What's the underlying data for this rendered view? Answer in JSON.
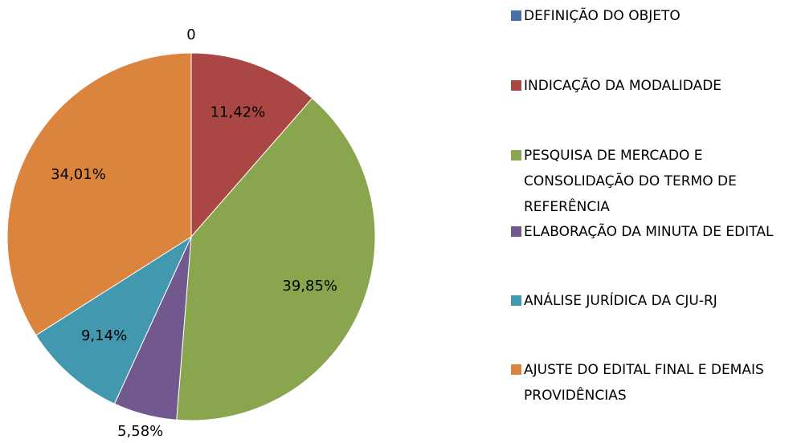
{
  "chart_data": {
    "type": "pie",
    "categories": [
      "DEFINIÇÃO DO OBJETO",
      "INDICAÇÃO DA MODALIDADE",
      "PESQUISA DE MERCADO E CONSOLIDAÇÃO DO TERMO DE REFERÊNCIA",
      "ELABORAÇÃO DA MINUTA DE EDITAL",
      "ANÁLISE JURÍDICA DA CJU-RJ",
      "AJUSTE DO EDITAL FINAL E DEMAIS PROVIDÊNCIAS"
    ],
    "values": [
      0,
      11.42,
      39.85,
      5.58,
      9.14,
      34.01
    ],
    "value_labels": [
      "0",
      "11,42%",
      "39,85%",
      "5,58%",
      "9,14%",
      "34,01%"
    ],
    "colors": [
      "#4572a7",
      "#aa4643",
      "#89a54e",
      "#71588f",
      "#4198af",
      "#db843d"
    ],
    "legend": "right"
  }
}
